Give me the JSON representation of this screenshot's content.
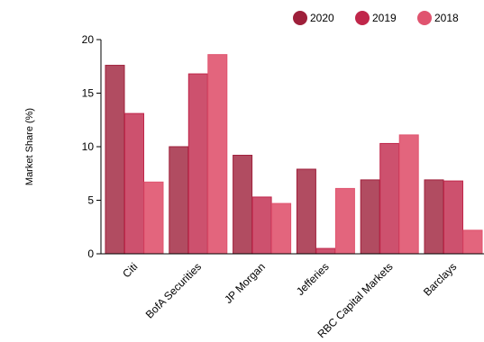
{
  "chart_data": {
    "type": "bar",
    "ylabel": "Market Share (%)",
    "xlabel": "",
    "ylim": [
      0,
      20
    ],
    "yticks": [
      "0",
      "5",
      "10",
      "15",
      "20"
    ],
    "categories": [
      "Citi",
      "BofA Securities",
      "JP Morgan",
      "Jefferies",
      "RBC Capital Markets",
      "Barclays"
    ],
    "series": [
      {
        "name": "2020",
        "color": "#9e1f3a",
        "values": [
          17.6,
          10.0,
          9.2,
          7.9,
          6.9,
          6.9
        ]
      },
      {
        "name": "2019",
        "color": "#c0264a",
        "values": [
          13.1,
          16.8,
          5.3,
          0.5,
          10.3,
          6.8
        ]
      },
      {
        "name": "2018",
        "color": "#e0546f",
        "values": [
          6.7,
          18.6,
          4.7,
          6.1,
          11.1,
          2.2
        ]
      }
    ],
    "legend_position": "top-right",
    "grid": false
  }
}
